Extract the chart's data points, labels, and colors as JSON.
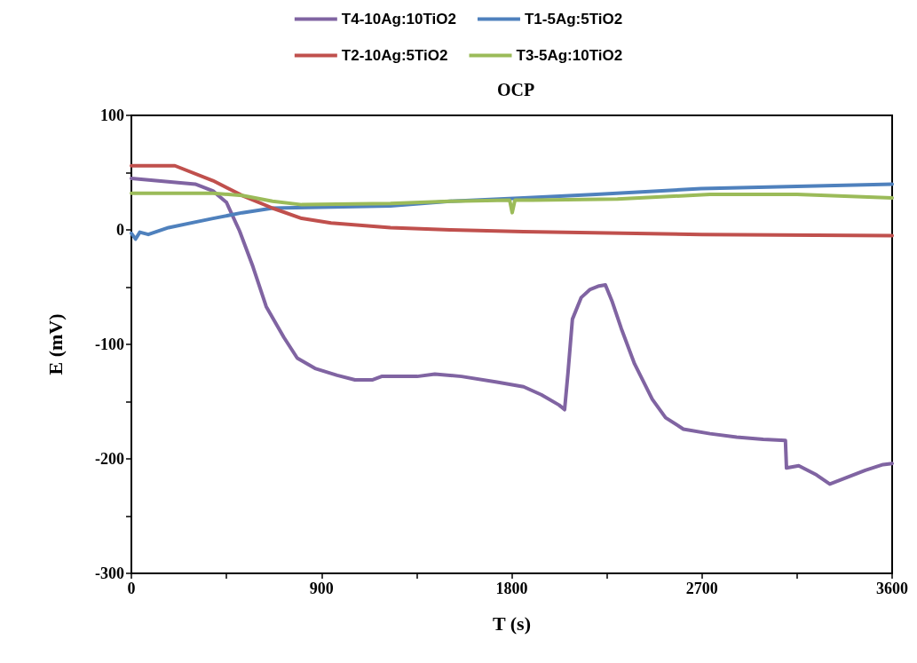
{
  "chart_data": {
    "type": "line",
    "title": "OCP",
    "xlabel": "T (s)",
    "ylabel": "E (mV)",
    "xlim": [
      0,
      3600
    ],
    "xticks": [
      0,
      {
        "value": 450,
        "label": null
      },
      900,
      {
        "value": 1350,
        "label": null
      },
      1800,
      {
        "value": 2250,
        "label": null
      },
      2700,
      {
        "value": 3150,
        "label": null
      },
      3600
    ],
    "ylim": [
      -300,
      100
    ],
    "yticks": [
      -300,
      {
        "value": -250,
        "label": null
      },
      -200,
      {
        "value": -150,
        "label": null
      },
      -100,
      {
        "value": -50,
        "label": null
      },
      0,
      {
        "value": 50,
        "label": null
      },
      100
    ],
    "grid": false,
    "legend": "top",
    "marker": "none",
    "line_style": "solid",
    "series": [
      {
        "name": "T4-10Ag:10TiO2",
        "color": "#8064a2",
        "x": [
          0,
          302,
          386,
          450,
          512,
          575,
          638,
          722,
          785,
          869,
          974,
          1058,
          1142,
          1184,
          1352,
          1436,
          1562,
          1730,
          1856,
          1940,
          2024,
          2050,
          2066,
          2087,
          2129,
          2171,
          2213,
          2243,
          2276,
          2318,
          2381,
          2465,
          2528,
          2612,
          2738,
          2864,
          2990,
          3095,
          3100,
          3158,
          3242,
          3305,
          3389,
          3473,
          3557,
          3600
        ],
        "values": [
          45,
          40,
          34,
          24,
          -1,
          -32,
          -67,
          -94,
          -112,
          -121,
          -127,
          -131,
          -131,
          -128,
          -128,
          -126,
          -128,
          -133,
          -137,
          -144,
          -153,
          -157,
          -125,
          -78,
          -59,
          -52,
          -49,
          -48,
          -63,
          -86,
          -117,
          -148,
          -164,
          -174,
          -178,
          -181,
          -183,
          -184,
          -208,
          -206,
          -214,
          -222,
          -216,
          -210,
          -205,
          -204
        ]
      },
      {
        "name": "T1-5Ag:5TiO2",
        "color": "#4f81bd",
        "x": [
          0,
          20,
          40,
          80,
          176,
          386,
          525,
          668,
          945,
          1226,
          1508,
          1856,
          2200,
          2696,
          3150,
          3600
        ],
        "values": [
          -3,
          -8,
          -2,
          -4,
          2,
          10,
          15,
          19,
          20,
          21,
          25,
          28,
          31,
          36,
          38,
          40
        ]
      },
      {
        "name": "T2-10Ag:5TiO2",
        "color": "#c0504d",
        "x": [
          0,
          206,
          386,
          525,
          668,
          806,
          945,
          1226,
          1508,
          1856,
          2700,
          3600
        ],
        "values": [
          56,
          56,
          43,
          30,
          19,
          10,
          6,
          2,
          0,
          -1.5,
          -4,
          -5
        ]
      },
      {
        "name": "T3-5Ag:10TiO2",
        "color": "#9bbb59",
        "x": [
          0,
          386,
          525,
          668,
          806,
          1226,
          1508,
          1790,
          1802,
          1815,
          1898,
          2300,
          2738,
          3150,
          3600
        ],
        "values": [
          32,
          32,
          30,
          25,
          22,
          23,
          25,
          26,
          15,
          26,
          26,
          27,
          31,
          31,
          28
        ]
      }
    ]
  }
}
